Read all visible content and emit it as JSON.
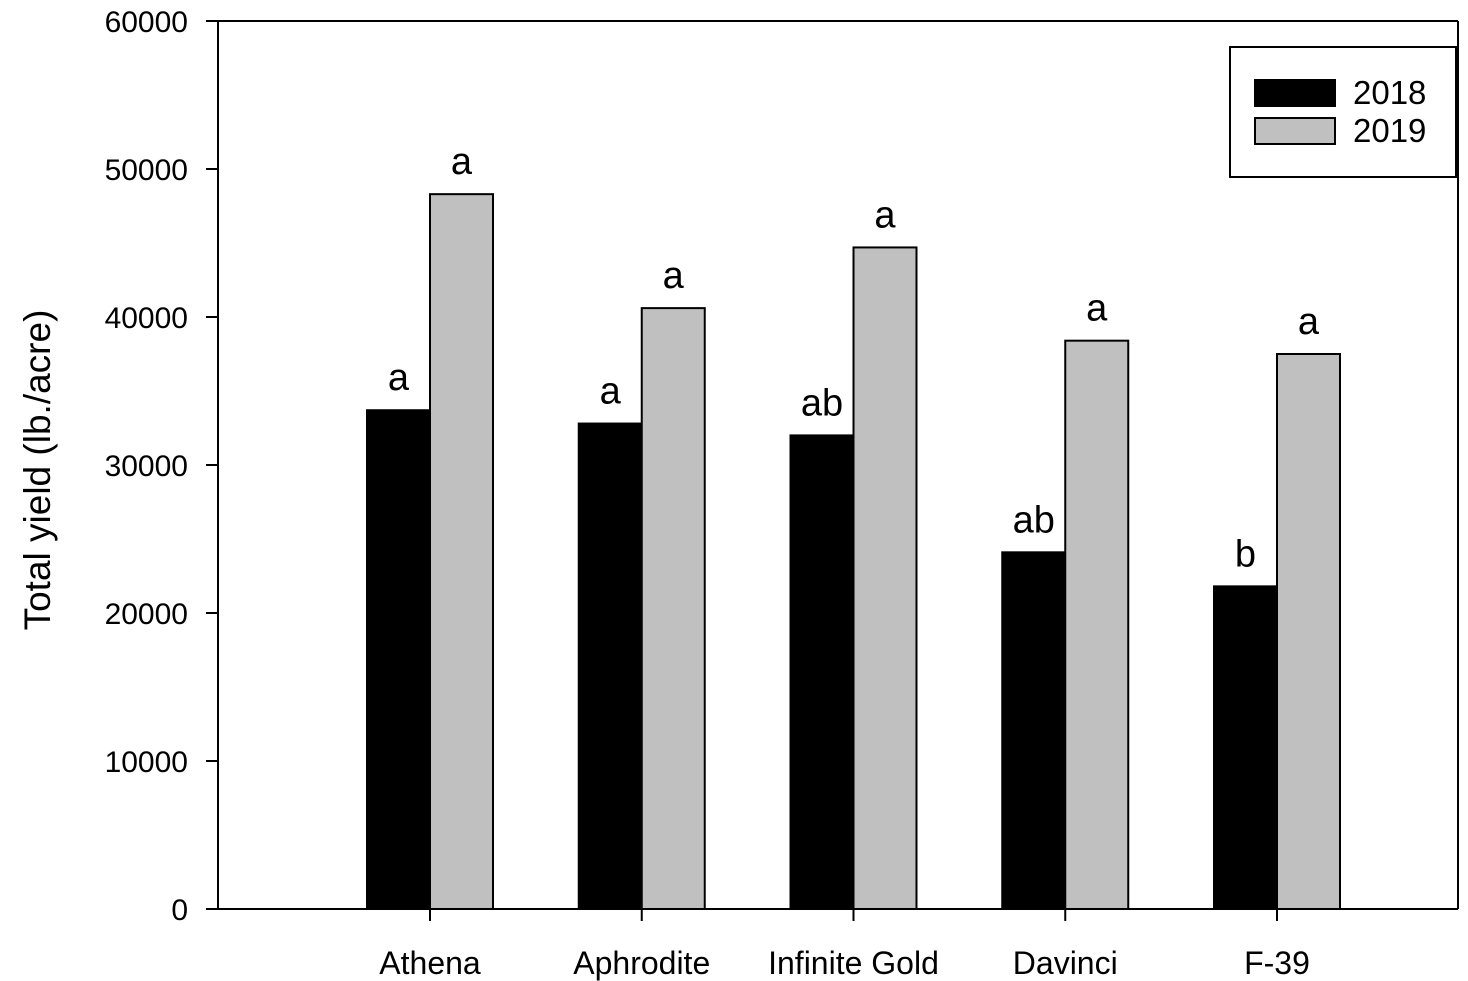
{
  "chart_data": {
    "type": "bar",
    "title": "",
    "xlabel": "",
    "ylabel": "Total yield (lb./acre)",
    "ylim": [
      0,
      60000
    ],
    "yticks": [
      "0",
      "10000",
      "20000",
      "30000",
      "40000",
      "50000",
      "60000"
    ],
    "categories": [
      "Athena",
      "Aphrodite",
      "Infinite Gold",
      "Davinci",
      "F-39"
    ],
    "series": [
      {
        "name": "2018",
        "color": "#000000",
        "values": [
          33700,
          32800,
          32000,
          24100,
          21800
        ],
        "labels": [
          "a",
          "a",
          "ab",
          "ab",
          "b"
        ]
      },
      {
        "name": "2019",
        "color": "#c0c0c0",
        "values": [
          48300,
          40600,
          44700,
          38400,
          37500
        ],
        "labels": [
          "a",
          "a",
          "a",
          "a",
          "a"
        ]
      }
    ],
    "legend": {
      "position": "top-right"
    },
    "grid": false
  }
}
